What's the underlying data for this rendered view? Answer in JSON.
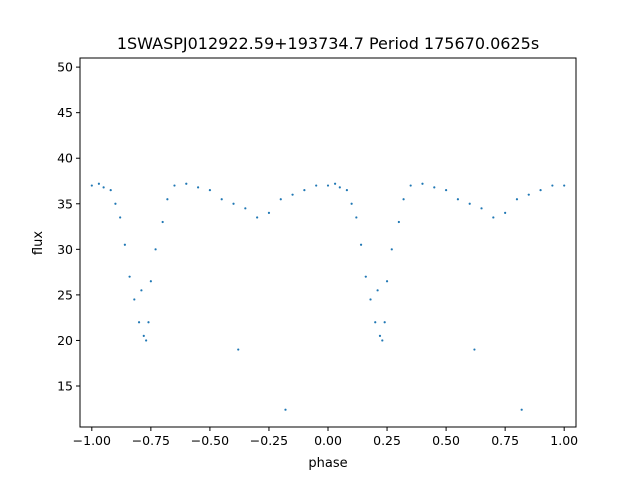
{
  "chart_data": {
    "type": "scatter",
    "title": "1SWASPJ012922.59+193734.7 Period 175670.0625s",
    "xlabel": "phase",
    "ylabel": "flux",
    "xlim": [
      -1.05,
      1.05
    ],
    "ylim": [
      10.5,
      51
    ],
    "xticks": [
      -1.0,
      -0.75,
      -0.5,
      -0.25,
      0.0,
      0.25,
      0.5,
      0.75,
      1.0
    ],
    "xtick_labels": [
      "−1.00",
      "−0.75",
      "−0.50",
      "−0.25",
      "0.00",
      "0.25",
      "0.50",
      "0.75",
      "1.00"
    ],
    "yticks": [
      15,
      20,
      25,
      30,
      35,
      40,
      45,
      50
    ],
    "ytick_labels": [
      "15",
      "20",
      "25",
      "30",
      "35",
      "40",
      "45",
      "50"
    ],
    "grid": false,
    "marker_color": "#1f77b4",
    "series": [
      {
        "values": [
          [
            -1.0,
            37.0
          ],
          [
            -0.97,
            37.2
          ],
          [
            -0.95,
            36.8
          ],
          [
            -0.92,
            36.5
          ],
          [
            -0.9,
            35.0
          ],
          [
            -0.88,
            33.5
          ],
          [
            -0.86,
            30.5
          ],
          [
            -0.84,
            27.0
          ],
          [
            -0.82,
            24.5
          ],
          [
            -0.8,
            22.0
          ],
          [
            -0.79,
            25.5
          ],
          [
            -0.78,
            20.5
          ],
          [
            -0.77,
            20.0
          ],
          [
            -0.76,
            22.0
          ],
          [
            -0.75,
            26.5
          ],
          [
            -0.73,
            30.0
          ],
          [
            -0.7,
            33.0
          ],
          [
            -0.68,
            35.5
          ],
          [
            -0.65,
            37.0
          ],
          [
            -0.6,
            37.2
          ],
          [
            -0.55,
            36.8
          ],
          [
            -0.5,
            36.5
          ],
          [
            -0.45,
            35.5
          ],
          [
            -0.4,
            35.0
          ],
          [
            -0.38,
            19.0
          ],
          [
            -0.35,
            34.5
          ],
          [
            -0.3,
            33.5
          ],
          [
            -0.25,
            34.0
          ],
          [
            -0.2,
            35.5
          ],
          [
            -0.18,
            12.4
          ],
          [
            -0.15,
            36.0
          ],
          [
            -0.1,
            36.5
          ],
          [
            -0.05,
            37.0
          ],
          [
            0.0,
            37.0
          ],
          [
            0.03,
            37.2
          ],
          [
            0.05,
            36.8
          ],
          [
            0.08,
            36.5
          ],
          [
            0.1,
            35.0
          ],
          [
            0.12,
            33.5
          ],
          [
            0.14,
            30.5
          ],
          [
            0.16,
            27.0
          ],
          [
            0.18,
            24.5
          ],
          [
            0.2,
            22.0
          ],
          [
            0.21,
            25.5
          ],
          [
            0.22,
            20.5
          ],
          [
            0.23,
            20.0
          ],
          [
            0.24,
            22.0
          ],
          [
            0.25,
            26.5
          ],
          [
            0.27,
            30.0
          ],
          [
            0.3,
            33.0
          ],
          [
            0.32,
            35.5
          ],
          [
            0.35,
            37.0
          ],
          [
            0.4,
            37.2
          ],
          [
            0.45,
            36.8
          ],
          [
            0.5,
            36.5
          ],
          [
            0.55,
            35.5
          ],
          [
            0.6,
            35.0
          ],
          [
            0.62,
            19.0
          ],
          [
            0.65,
            34.5
          ],
          [
            0.7,
            33.5
          ],
          [
            0.75,
            34.0
          ],
          [
            0.8,
            35.5
          ],
          [
            0.82,
            12.4
          ],
          [
            0.85,
            36.0
          ],
          [
            0.9,
            36.5
          ],
          [
            0.95,
            37.0
          ],
          [
            1.0,
            37.0
          ]
        ]
      }
    ]
  }
}
